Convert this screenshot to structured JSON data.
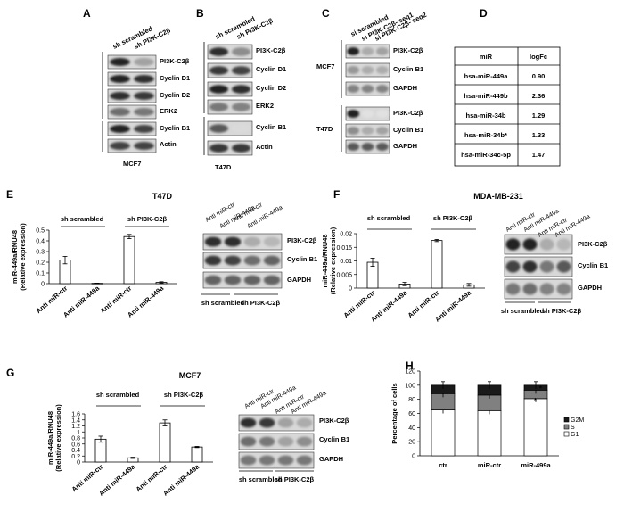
{
  "panels": {
    "A": {
      "letter": "A",
      "lanes": [
        "sh scrambled",
        "sh PI3K-C2β"
      ],
      "blots": [
        "PI3K-C2β",
        "Cyclin D1",
        "Cyclin D2",
        "ERK2",
        "Cyclin B1",
        "Actin"
      ],
      "cell": "MCF7"
    },
    "B": {
      "letter": "B",
      "lanes": [
        "sh scrambled",
        "sh PI3K-C2β"
      ],
      "blots": [
        "PI3K-C2β",
        "Cyclin D1",
        "Cyclin D2",
        "ERK2",
        "Cyclin B1",
        "Actin"
      ],
      "cell": "T47D"
    },
    "C": {
      "letter": "C",
      "lanes": [
        "si scrambled",
        "si PI3K-C2β- seq1",
        "si PI3K-C2β- seq2"
      ],
      "group1": {
        "cell": "MCF7",
        "blots": [
          "PI3K-C2β",
          "Cyclin B1",
          "GAPDH"
        ]
      },
      "group2": {
        "cell": "T47D",
        "blots": [
          "PI3K-C2β",
          "Cyclin B1",
          "GAPDH"
        ]
      }
    },
    "D": {
      "letter": "D",
      "headers": [
        "miR",
        "logFc"
      ],
      "rows": [
        {
          "mir": "hsa-miR-449a",
          "logfc": "0.90"
        },
        {
          "mir": "hsa-miR-449b",
          "logfc": "2.36"
        },
        {
          "mir": "hsa-miR-34b",
          "logfc": "1.29"
        },
        {
          "mir": "hsa-miR-34b*",
          "logfc": "1.33"
        },
        {
          "mir": "hsa-miR-34c-5p",
          "logfc": "1.47"
        }
      ]
    },
    "E": {
      "letter": "E",
      "title": "T47D",
      "groups": [
        "sh scrambled",
        "sh PI3K-C2β"
      ],
      "blots": [
        "PI3K-C2β",
        "Cyclin B1",
        "GAPDH"
      ],
      "blot_lanes": [
        "Anti miR-ctr",
        "Anti miR-449a",
        "Anti miR-ctr",
        "Anti miR-449a"
      ]
    },
    "F": {
      "letter": "F",
      "title": "MDA-MB-231",
      "groups": [
        "sh scrambled",
        "sh PI3K-C2β"
      ],
      "blots": [
        "PI3K-C2β",
        "Cyclin B1",
        "GAPDH"
      ],
      "blot_lanes": [
        "Anti miR-ctr",
        "Anti miR-449a",
        "Anti miR-ctr",
        "Anti miR-449a"
      ]
    },
    "G": {
      "letter": "G",
      "title": "MCF7",
      "groups": [
        "sh scrambled",
        "sh PI3K-C2β"
      ],
      "blots": [
        "PI3K-C2β",
        "Cyclin B1",
        "GAPDH"
      ],
      "blot_lanes": [
        "Anti miR-ctr",
        "Anti miR-449a",
        "Anti miR-ctr",
        "Anti miR-449a"
      ]
    },
    "H": {
      "letter": "H"
    }
  },
  "chart_data": [
    {
      "id": "E",
      "type": "bar",
      "categories": [
        "Anti miR-ctr",
        "Anti miR-449a",
        "Anti miR-ctr",
        "Anti miR-449a"
      ],
      "values": [
        0.22,
        0.003,
        0.44,
        0.012
      ],
      "errors": [
        0.035,
        0.002,
        0.02,
        0.006
      ],
      "ylabel": "miR-449a/RNU48\n(Relative expression)",
      "ylim": [
        0,
        0.5
      ],
      "yticks": [
        "0",
        "0.1",
        "0.2",
        "0.3",
        "0.4",
        "0.5"
      ]
    },
    {
      "id": "F",
      "type": "bar",
      "categories": [
        "Anti miR-ctr",
        "Anti miR-449a",
        "Anti miR-ctr",
        "Anti miR-449a"
      ],
      "values": [
        0.0095,
        0.0015,
        0.0175,
        0.0012
      ],
      "errors": [
        0.0015,
        0.0006,
        0.0004,
        0.0005
      ],
      "ylabel": "miR-449a/RNU48\n(Relative expression)",
      "ylim": [
        0,
        0.02
      ],
      "yticks": [
        "0",
        "0.005",
        "0.01",
        "0.015",
        "0.02"
      ]
    },
    {
      "id": "G",
      "type": "bar",
      "categories": [
        "Anti miR-ctr",
        "Anti miR-449a",
        "Anti miR-ctr",
        "Anti miR-449a"
      ],
      "values": [
        0.76,
        0.14,
        1.3,
        0.5
      ],
      "errors": [
        0.1,
        0.02,
        0.1,
        0.02
      ],
      "ylabel": "miR-449a/RNU48\n(Relative expression)",
      "ylim": [
        0,
        1.6
      ],
      "yticks": [
        "0",
        "0.2",
        "0.4",
        "0.6",
        "0.8",
        "1",
        "1.2",
        "1.4",
        "1.6"
      ]
    },
    {
      "id": "H",
      "type": "bar",
      "stacked": true,
      "categories": [
        "ctr",
        "miR-ctr",
        "miR-499a"
      ],
      "series": [
        {
          "name": "G1",
          "values": [
            65,
            64,
            81
          ],
          "color": "#ffffff"
        },
        {
          "name": "S",
          "values": [
            23,
            22,
            12
          ],
          "color": "#808080"
        },
        {
          "name": "G2M",
          "values": [
            12,
            14,
            7
          ],
          "color": "#1a1a1a"
        }
      ],
      "ylabel": "Percentage of cells",
      "ylim": [
        0,
        120
      ],
      "yticks": [
        "0",
        "20",
        "40",
        "60",
        "80",
        "100",
        "120"
      ],
      "legend": "right",
      "annotations": [
        "*",
        "*"
      ]
    }
  ]
}
